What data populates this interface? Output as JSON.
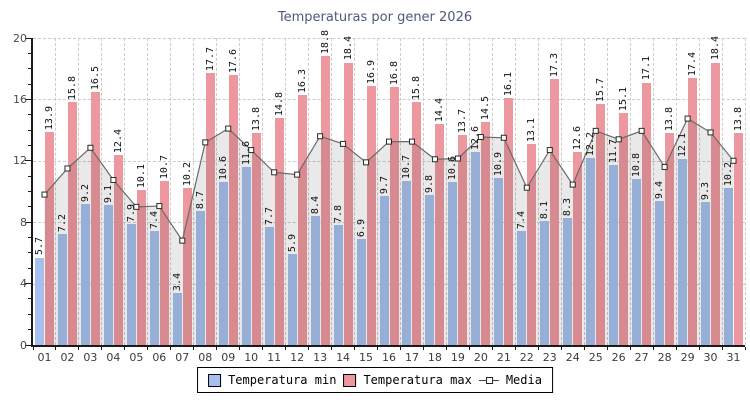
{
  "title": "Temperaturas por gener 2026",
  "legend": {
    "min_label": "Temperatura min",
    "max_label": "Temperatura max",
    "media_label": "Media"
  },
  "colors": {
    "min_bar": "#a6bfec",
    "max_bar": "#ec989e",
    "media_line": "#6b6b6b",
    "media_area": "rgba(0,0,0,0.088)",
    "marker_fill": "#ffffff",
    "marker_border": "#2b2b2b",
    "title_color": "#4d5a7d",
    "grid_color": "#cbcbcb",
    "axis_color": "#1a1a1a"
  },
  "chart_data": {
    "type": "bar",
    "title": "Temperaturas por gener 2026",
    "xlabel": "",
    "ylabel": "",
    "ylim": [
      0,
      20
    ],
    "yticks": [
      0,
      4,
      8,
      12,
      16,
      20
    ],
    "minor_tick_step": 1,
    "grid": true,
    "legend_position": "bottom",
    "categories": [
      "01",
      "02",
      "03",
      "04",
      "05",
      "06",
      "07",
      "08",
      "09",
      "10",
      "11",
      "12",
      "13",
      "14",
      "15",
      "16",
      "17",
      "18",
      "19",
      "20",
      "21",
      "22",
      "23",
      "24",
      "25",
      "26",
      "27",
      "28",
      "29",
      "30",
      "31"
    ],
    "series": [
      {
        "name": "Temperatura min",
        "type": "bar",
        "values": [
          5.7,
          7.2,
          9.2,
          9.1,
          7.9,
          7.4,
          3.4,
          8.7,
          10.6,
          11.6,
          7.7,
          5.9,
          8.4,
          7.8,
          6.9,
          9.7,
          10.7,
          9.8,
          10.6,
          12.6,
          10.9,
          7.4,
          8.1,
          8.3,
          12.2,
          11.7,
          10.8,
          9.4,
          12.1,
          9.3,
          10.2
        ]
      },
      {
        "name": "Temperatura max",
        "type": "bar",
        "values": [
          13.9,
          15.8,
          16.5,
          12.4,
          10.1,
          10.7,
          10.2,
          17.7,
          17.6,
          13.8,
          14.8,
          16.3,
          18.8,
          18.4,
          16.9,
          16.8,
          15.8,
          14.4,
          13.7,
          14.5,
          16.1,
          13.1,
          17.3,
          12.6,
          15.7,
          15.1,
          17.1,
          13.8,
          17.4,
          18.4,
          13.8
        ]
      },
      {
        "name": "Media",
        "type": "line",
        "values": [
          9.8,
          11.5,
          12.85,
          10.75,
          9.0,
          9.05,
          6.8,
          13.2,
          14.1,
          12.7,
          11.25,
          11.1,
          13.6,
          13.1,
          11.9,
          13.25,
          13.25,
          12.1,
          12.15,
          13.55,
          13.5,
          10.25,
          12.7,
          10.45,
          13.95,
          13.4,
          13.95,
          11.6,
          14.75,
          13.85,
          12.0
        ]
      }
    ]
  }
}
